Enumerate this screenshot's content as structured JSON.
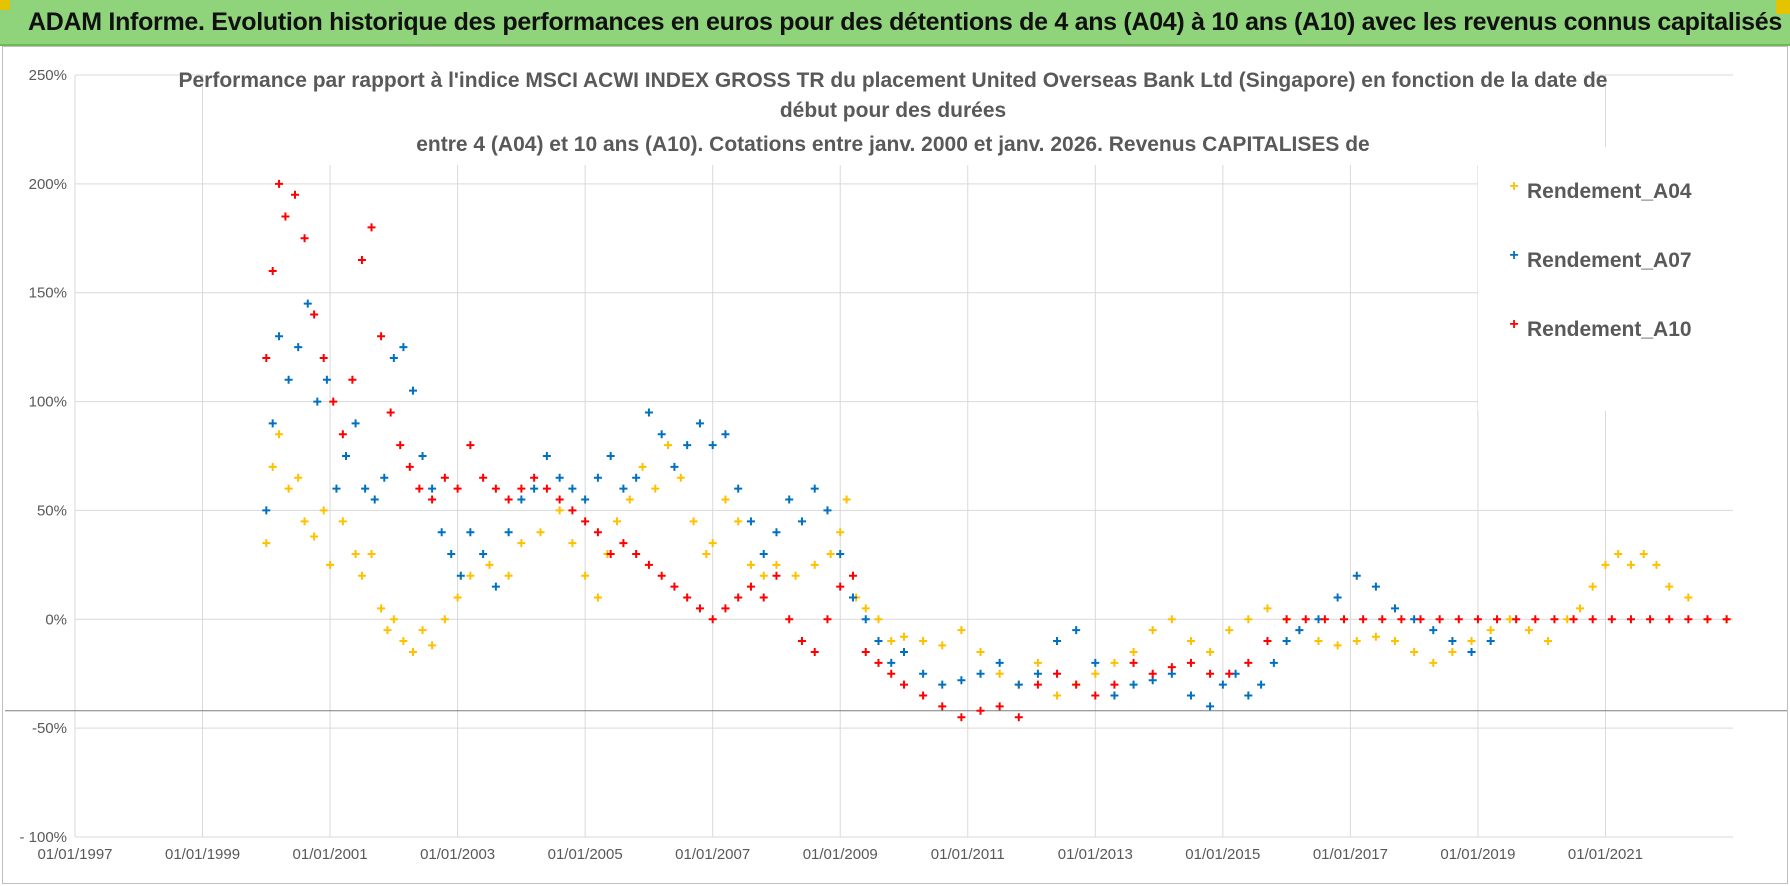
{
  "header": {
    "banner_text": "ADAM Informe. Evolution historique des performances en euros pour des détentions de 4 ans (A04) à 10 ans (A10) avec les revenus connus capitalisés"
  },
  "colors": {
    "banner_bg": "#8fd37a",
    "accent_yellow": "#e4c400",
    "A04": "#ffc000",
    "A07": "#0070c0",
    "A10": "#ff0000",
    "grid": "#d9d9d9",
    "text": "#595959"
  },
  "chart_data": {
    "type": "scatter",
    "marker": "+",
    "title_lines": [
      "Performance par rapport à l'indice MSCI ACWI INDEX GROSS TR  du placement United Overseas Bank Ltd (Singapore) en fonction de la date de",
      "début pour des durées",
      "entre 4 (A04) et 10 ans (A10).  Cotations entre janv. 2000 et janv. 2026. Revenus CAPITALISES de"
    ],
    "y_tick_labels": [
      "250%",
      "200%",
      "150%",
      "100%",
      "50%",
      "0%",
      "-50%",
      "- 100%"
    ],
    "y_ticks": [
      250,
      200,
      150,
      100,
      50,
      0,
      -50,
      -100
    ],
    "ylim": [
      -100,
      250
    ],
    "x_tick_labels": [
      "01/01/1997",
      "01/01/1999",
      "01/01/2001",
      "01/01/2003",
      "01/01/2005",
      "01/01/2007",
      "01/01/2009",
      "01/01/2011",
      "01/01/2013",
      "01/01/2015",
      "01/01/2017",
      "01/01/2019",
      "01/01/2021"
    ],
    "x_ticks": [
      1997,
      1999,
      2001,
      2003,
      2005,
      2007,
      2009,
      2011,
      2013,
      2015,
      2017,
      2019,
      2021
    ],
    "xlim": [
      1997,
      2023
    ],
    "grid": true,
    "legend_position": "top-right",
    "series": [
      {
        "name": "Rendement_A04",
        "color": "#ffc000",
        "x": [
          2000.0,
          2000.1,
          2000.2,
          2000.35,
          2000.5,
          2000.6,
          2000.75,
          2000.9,
          2001.0,
          2001.2,
          2001.4,
          2001.5,
          2001.65,
          2001.8,
          2001.9,
          2002.0,
          2002.15,
          2002.3,
          2002.45,
          2002.6,
          2002.8,
          2003.0,
          2003.2,
          2003.5,
          2003.8,
          2004.0,
          2004.3,
          2004.6,
          2004.8,
          2005.0,
          2005.2,
          2005.35,
          2005.5,
          2005.7,
          2005.9,
          2006.1,
          2006.3,
          2006.5,
          2006.7,
          2006.9,
          2007.0,
          2007.2,
          2007.4,
          2007.6,
          2007.8,
          2008.0,
          2008.3,
          2008.6,
          2008.85,
          2009.0,
          2009.1,
          2009.25,
          2009.4,
          2009.6,
          2009.8,
          2010.0,
          2010.3,
          2010.6,
          2010.9,
          2011.2,
          2011.5,
          2011.8,
          2012.1,
          2012.4,
          2012.7,
          2013.0,
          2013.3,
          2013.6,
          2013.9,
          2014.2,
          2014.5,
          2014.8,
          2015.1,
          2015.4,
          2015.7,
          2016.0,
          2016.2,
          2016.5,
          2016.8,
          2017.1,
          2017.4,
          2017.7,
          2018.0,
          2018.3,
          2018.6,
          2018.9,
          2019.2,
          2019.5,
          2019.8,
          2020.1,
          2020.4,
          2020.6,
          2020.8,
          2021.0,
          2021.2,
          2021.4,
          2021.6,
          2021.8,
          2022.0,
          2022.3,
          2022.6,
          2022.9
        ],
        "y": [
          35,
          70,
          85,
          60,
          65,
          45,
          38,
          50,
          25,
          45,
          30,
          20,
          30,
          5,
          -5,
          0,
          -10,
          -15,
          -5,
          -12,
          0,
          10,
          20,
          25,
          20,
          35,
          40,
          50,
          35,
          20,
          10,
          30,
          45,
          55,
          70,
          60,
          80,
          65,
          45,
          30,
          35,
          55,
          45,
          25,
          20,
          25,
          20,
          25,
          30,
          40,
          55,
          10,
          5,
          0,
          -10,
          -8,
          -10,
          -12,
          -5,
          -15,
          -25,
          -30,
          -20,
          -35,
          -30,
          -25,
          -20,
          -15,
          -5,
          0,
          -10,
          -15,
          -5,
          0,
          5,
          0,
          -5,
          -10,
          -12,
          -10,
          -8,
          -10,
          -15,
          -20,
          -15,
          -10,
          -5,
          0,
          -5,
          -10,
          0,
          5,
          15,
          25,
          30,
          25,
          30,
          25,
          15,
          10,
          0,
          0
        ]
      },
      {
        "name": "Rendement_A07",
        "color": "#0070c0",
        "x": [
          2000.0,
          2000.1,
          2000.2,
          2000.35,
          2000.5,
          2000.65,
          2000.8,
          2000.95,
          2001.1,
          2001.25,
          2001.4,
          2001.55,
          2001.7,
          2001.85,
          2002.0,
          2002.15,
          2002.3,
          2002.45,
          2002.6,
          2002.75,
          2002.9,
          2003.05,
          2003.2,
          2003.4,
          2003.6,
          2003.8,
          2004.0,
          2004.2,
          2004.4,
          2004.6,
          2004.8,
          2005.0,
          2005.2,
          2005.4,
          2005.6,
          2005.8,
          2006.0,
          2006.2,
          2006.4,
          2006.6,
          2006.8,
          2007.0,
          2007.2,
          2007.4,
          2007.6,
          2007.8,
          2008.0,
          2008.2,
          2008.4,
          2008.6,
          2008.8,
          2009.0,
          2009.2,
          2009.4,
          2009.6,
          2009.8,
          2010.0,
          2010.3,
          2010.6,
          2010.9,
          2011.2,
          2011.5,
          2011.8,
          2012.1,
          2012.4,
          2012.7,
          2013.0,
          2013.3,
          2013.6,
          2013.9,
          2014.2,
          2014.5,
          2014.8,
          2015.0,
          2015.2,
          2015.4,
          2015.6,
          2015.8,
          2016.0,
          2016.2,
          2016.5,
          2016.8,
          2017.1,
          2017.4,
          2017.7,
          2018.0,
          2018.3,
          2018.6,
          2018.9,
          2019.2
        ],
        "y": [
          50,
          90,
          130,
          110,
          125,
          145,
          100,
          110,
          60,
          75,
          90,
          60,
          55,
          65,
          120,
          125,
          105,
          75,
          60,
          40,
          30,
          20,
          40,
          30,
          15,
          40,
          55,
          60,
          75,
          65,
          60,
          55,
          65,
          75,
          60,
          65,
          95,
          85,
          70,
          80,
          90,
          80,
          85,
          60,
          45,
          30,
          40,
          55,
          45,
          60,
          50,
          30,
          10,
          0,
          -10,
          -20,
          -15,
          -25,
          -30,
          -28,
          -25,
          -20,
          -30,
          -25,
          -10,
          -5,
          -20,
          -35,
          -30,
          -28,
          -25,
          -35,
          -40,
          -30,
          -25,
          -35,
          -30,
          -20,
          -10,
          -5,
          0,
          10,
          20,
          15,
          5,
          0,
          -5,
          -10,
          -15,
          -10
        ]
      },
      {
        "name": "Rendement_A10",
        "color": "#ff0000",
        "x": [
          2000.0,
          2000.1,
          2000.2,
          2000.3,
          2000.45,
          2000.6,
          2000.75,
          2000.9,
          2001.05,
          2001.2,
          2001.35,
          2001.5,
          2001.65,
          2001.8,
          2001.95,
          2002.1,
          2002.25,
          2002.4,
          2002.6,
          2002.8,
          2003.0,
          2003.2,
          2003.4,
          2003.6,
          2003.8,
          2004.0,
          2004.2,
          2004.4,
          2004.6,
          2004.8,
          2005.0,
          2005.2,
          2005.4,
          2005.6,
          2005.8,
          2006.0,
          2006.2,
          2006.4,
          2006.6,
          2006.8,
          2007.0,
          2007.2,
          2007.4,
          2007.6,
          2007.8,
          2008.0,
          2008.2,
          2008.4,
          2008.6,
          2008.8,
          2009.0,
          2009.2,
          2009.4,
          2009.6,
          2009.8,
          2010.0,
          2010.3,
          2010.6,
          2010.9,
          2011.2,
          2011.5,
          2011.8,
          2012.1,
          2012.4,
          2012.7,
          2013.0,
          2013.3,
          2013.6,
          2013.9,
          2014.2,
          2014.5,
          2014.8,
          2015.1,
          2015.4,
          2015.7,
          2016.0,
          2016.3,
          2016.6,
          2016.9,
          2017.2,
          2017.5,
          2017.8,
          2018.1,
          2018.4,
          2018.7,
          2019.0,
          2019.3,
          2019.6,
          2019.9,
          2020.2,
          2020.5,
          2020.8,
          2021.1,
          2021.4,
          2021.7,
          2022.0,
          2022.3,
          2022.6,
          2022.9
        ],
        "y": [
          120,
          160,
          200,
          185,
          195,
          175,
          140,
          120,
          100,
          85,
          110,
          165,
          180,
          130,
          95,
          80,
          70,
          60,
          55,
          65,
          60,
          80,
          65,
          60,
          55,
          60,
          65,
          60,
          55,
          50,
          45,
          40,
          30,
          35,
          30,
          25,
          20,
          15,
          10,
          5,
          0,
          5,
          10,
          15,
          10,
          20,
          0,
          -10,
          -15,
          0,
          15,
          20,
          -15,
          -20,
          -25,
          -30,
          -35,
          -40,
          -45,
          -42,
          -40,
          -45,
          -30,
          -25,
          -30,
          -35,
          -30,
          -20,
          -25,
          -22,
          -20,
          -25,
          -25,
          -20,
          -10,
          0,
          0,
          0,
          0,
          0,
          0,
          0,
          0,
          0,
          0,
          0,
          0,
          0,
          0,
          0,
          0,
          0,
          0,
          0,
          0,
          0,
          0,
          0,
          0
        ]
      }
    ]
  }
}
